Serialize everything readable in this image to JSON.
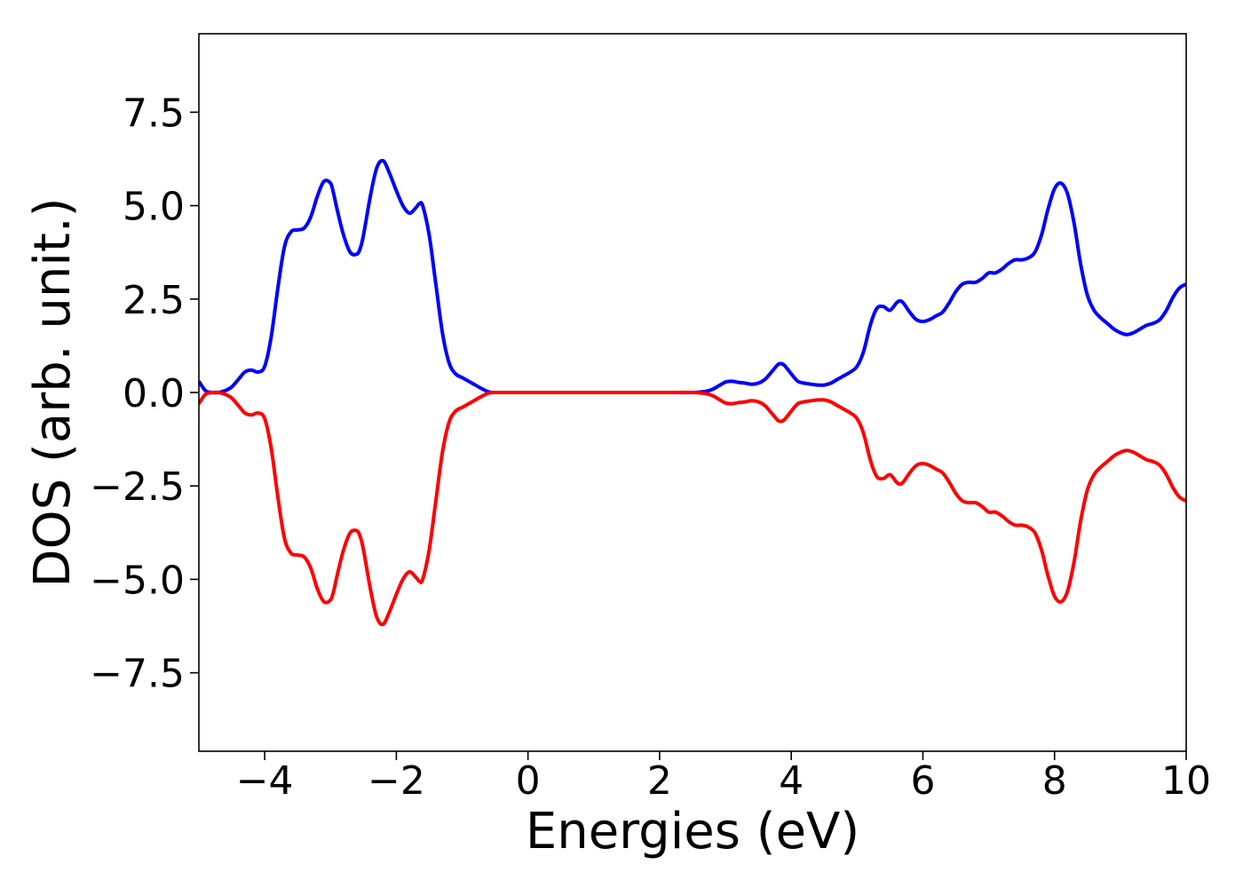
{
  "chart_data": {
    "type": "line",
    "title": "",
    "xlabel": "Energies (eV)",
    "ylabel": "DOS (arb. unit.)",
    "xlim": [
      -5,
      10
    ],
    "ylim": [
      -9.6,
      9.6
    ],
    "xticks": [
      -4,
      -2,
      0,
      2,
      4,
      6,
      8,
      10
    ],
    "xtick_labels": [
      "−4",
      "−2",
      "0",
      "2",
      "4",
      "6",
      "8",
      "10"
    ],
    "yticks": [
      -7.5,
      -5.0,
      -2.5,
      0.0,
      2.5,
      5.0,
      7.5
    ],
    "ytick_labels": [
      "−7.5",
      "−5.0",
      "−2.5",
      "0.0",
      "2.5",
      "5.0",
      "7.5"
    ],
    "grid": false,
    "legend": false,
    "series": [
      {
        "color": "#0000ff",
        "x": [
          -5.0,
          -4.9,
          -4.8,
          -4.7,
          -4.6,
          -4.5,
          -4.4,
          -4.3,
          -4.2,
          -4.1,
          -4.0,
          -3.9,
          -3.8,
          -3.7,
          -3.6,
          -3.5,
          -3.4,
          -3.3,
          -3.2,
          -3.1,
          -3.0,
          -2.95,
          -2.9,
          -2.8,
          -2.7,
          -2.6,
          -2.55,
          -2.5,
          -2.4,
          -2.3,
          -2.2,
          -2.1,
          -2.0,
          -1.9,
          -1.8,
          -1.7,
          -1.65,
          -1.6,
          -1.5,
          -1.4,
          -1.3,
          -1.2,
          -1.1,
          -1.0,
          -0.9,
          -0.8,
          -0.7,
          -0.6,
          -0.5,
          0.0,
          1.0,
          2.0,
          2.5,
          2.7,
          2.8,
          2.9,
          3.0,
          3.1,
          3.2,
          3.3,
          3.4,
          3.5,
          3.6,
          3.7,
          3.8,
          3.85,
          3.9,
          4.0,
          4.1,
          4.2,
          4.3,
          4.4,
          4.5,
          4.6,
          4.7,
          4.8,
          4.9,
          5.0,
          5.1,
          5.2,
          5.3,
          5.4,
          5.5,
          5.6,
          5.65,
          5.7,
          5.8,
          5.9,
          6.0,
          6.1,
          6.2,
          6.3,
          6.4,
          6.5,
          6.6,
          6.7,
          6.8,
          6.9,
          7.0,
          7.1,
          7.2,
          7.3,
          7.4,
          7.5,
          7.6,
          7.7,
          7.8,
          7.9,
          8.0,
          8.1,
          8.2,
          8.3,
          8.4,
          8.5,
          8.6,
          8.7,
          8.8,
          8.9,
          9.0,
          9.1,
          9.2,
          9.3,
          9.4,
          9.5,
          9.6,
          9.7,
          9.8,
          9.9,
          10.0
        ],
        "y": [
          0.3,
          0.05,
          0.0,
          0.0,
          0.05,
          0.15,
          0.35,
          0.55,
          0.6,
          0.55,
          0.7,
          1.5,
          2.8,
          3.9,
          4.3,
          4.35,
          4.4,
          4.7,
          5.25,
          5.65,
          5.6,
          5.3,
          4.9,
          4.2,
          3.75,
          3.7,
          3.85,
          4.2,
          5.2,
          6.0,
          6.2,
          5.85,
          5.4,
          5.0,
          4.8,
          4.95,
          5.05,
          5.0,
          4.2,
          2.9,
          1.6,
          0.8,
          0.5,
          0.4,
          0.3,
          0.2,
          0.1,
          0.02,
          0.0,
          0.0,
          0.0,
          0.0,
          0.0,
          0.03,
          0.08,
          0.18,
          0.28,
          0.3,
          0.27,
          0.25,
          0.22,
          0.25,
          0.35,
          0.55,
          0.75,
          0.77,
          0.72,
          0.5,
          0.3,
          0.25,
          0.22,
          0.2,
          0.2,
          0.25,
          0.35,
          0.45,
          0.55,
          0.7,
          1.1,
          1.8,
          2.25,
          2.3,
          2.2,
          2.4,
          2.45,
          2.4,
          2.15,
          1.95,
          1.9,
          1.95,
          2.05,
          2.15,
          2.4,
          2.7,
          2.9,
          2.95,
          2.95,
          3.05,
          3.2,
          3.2,
          3.3,
          3.45,
          3.55,
          3.55,
          3.6,
          3.75,
          4.2,
          4.9,
          5.45,
          5.6,
          5.3,
          4.5,
          3.4,
          2.6,
          2.2,
          2.0,
          1.85,
          1.7,
          1.6,
          1.55,
          1.6,
          1.7,
          1.8,
          1.85,
          1.95,
          2.2,
          2.55,
          2.8,
          2.9
        ]
      },
      {
        "color": "#ff0000",
        "x": [
          -5.0,
          -4.9,
          -4.8,
          -4.7,
          -4.6,
          -4.5,
          -4.4,
          -4.3,
          -4.2,
          -4.1,
          -4.0,
          -3.9,
          -3.8,
          -3.7,
          -3.6,
          -3.5,
          -3.4,
          -3.3,
          -3.2,
          -3.1,
          -3.0,
          -2.95,
          -2.9,
          -2.8,
          -2.7,
          -2.6,
          -2.55,
          -2.5,
          -2.4,
          -2.3,
          -2.2,
          -2.1,
          -2.0,
          -1.9,
          -1.8,
          -1.7,
          -1.65,
          -1.6,
          -1.5,
          -1.4,
          -1.3,
          -1.2,
          -1.1,
          -1.0,
          -0.9,
          -0.8,
          -0.7,
          -0.6,
          -0.5,
          0.0,
          1.0,
          2.0,
          2.5,
          2.7,
          2.8,
          2.9,
          3.0,
          3.1,
          3.2,
          3.3,
          3.4,
          3.5,
          3.6,
          3.7,
          3.8,
          3.85,
          3.9,
          4.0,
          4.1,
          4.2,
          4.3,
          4.4,
          4.5,
          4.6,
          4.7,
          4.8,
          4.9,
          5.0,
          5.1,
          5.2,
          5.3,
          5.4,
          5.5,
          5.6,
          5.65,
          5.7,
          5.8,
          5.9,
          6.0,
          6.1,
          6.2,
          6.3,
          6.4,
          6.5,
          6.6,
          6.7,
          6.8,
          6.9,
          7.0,
          7.1,
          7.2,
          7.3,
          7.4,
          7.5,
          7.6,
          7.7,
          7.8,
          7.9,
          8.0,
          8.1,
          8.2,
          8.3,
          8.4,
          8.5,
          8.6,
          8.7,
          8.8,
          8.9,
          9.0,
          9.1,
          9.2,
          9.3,
          9.4,
          9.5,
          9.6,
          9.7,
          9.8,
          9.9,
          10.0
        ],
        "y": [
          -0.3,
          -0.05,
          0.0,
          0.0,
          -0.05,
          -0.15,
          -0.35,
          -0.55,
          -0.6,
          -0.55,
          -0.7,
          -1.5,
          -2.8,
          -3.9,
          -4.3,
          -4.35,
          -4.4,
          -4.7,
          -5.25,
          -5.6,
          -5.55,
          -5.3,
          -4.9,
          -4.2,
          -3.75,
          -3.7,
          -3.85,
          -4.2,
          -5.2,
          -6.0,
          -6.2,
          -5.85,
          -5.4,
          -5.0,
          -4.8,
          -4.95,
          -5.05,
          -5.0,
          -4.2,
          -2.9,
          -1.6,
          -0.8,
          -0.5,
          -0.4,
          -0.3,
          -0.2,
          -0.1,
          -0.02,
          0.0,
          0.0,
          0.0,
          0.0,
          0.0,
          -0.03,
          -0.08,
          -0.18,
          -0.28,
          -0.3,
          -0.27,
          -0.25,
          -0.22,
          -0.25,
          -0.35,
          -0.55,
          -0.75,
          -0.77,
          -0.72,
          -0.5,
          -0.3,
          -0.25,
          -0.22,
          -0.2,
          -0.2,
          -0.25,
          -0.35,
          -0.45,
          -0.55,
          -0.7,
          -1.1,
          -1.8,
          -2.25,
          -2.3,
          -2.2,
          -2.4,
          -2.45,
          -2.4,
          -2.15,
          -1.95,
          -1.9,
          -1.95,
          -2.05,
          -2.15,
          -2.4,
          -2.7,
          -2.9,
          -2.95,
          -2.95,
          -3.05,
          -3.2,
          -3.2,
          -3.3,
          -3.45,
          -3.55,
          -3.55,
          -3.6,
          -3.75,
          -4.2,
          -4.9,
          -5.45,
          -5.6,
          -5.3,
          -4.5,
          -3.4,
          -2.6,
          -2.2,
          -2.0,
          -1.85,
          -1.7,
          -1.6,
          -1.55,
          -1.6,
          -1.7,
          -1.8,
          -1.85,
          -1.95,
          -2.2,
          -2.55,
          -2.8,
          -2.9
        ]
      }
    ]
  }
}
